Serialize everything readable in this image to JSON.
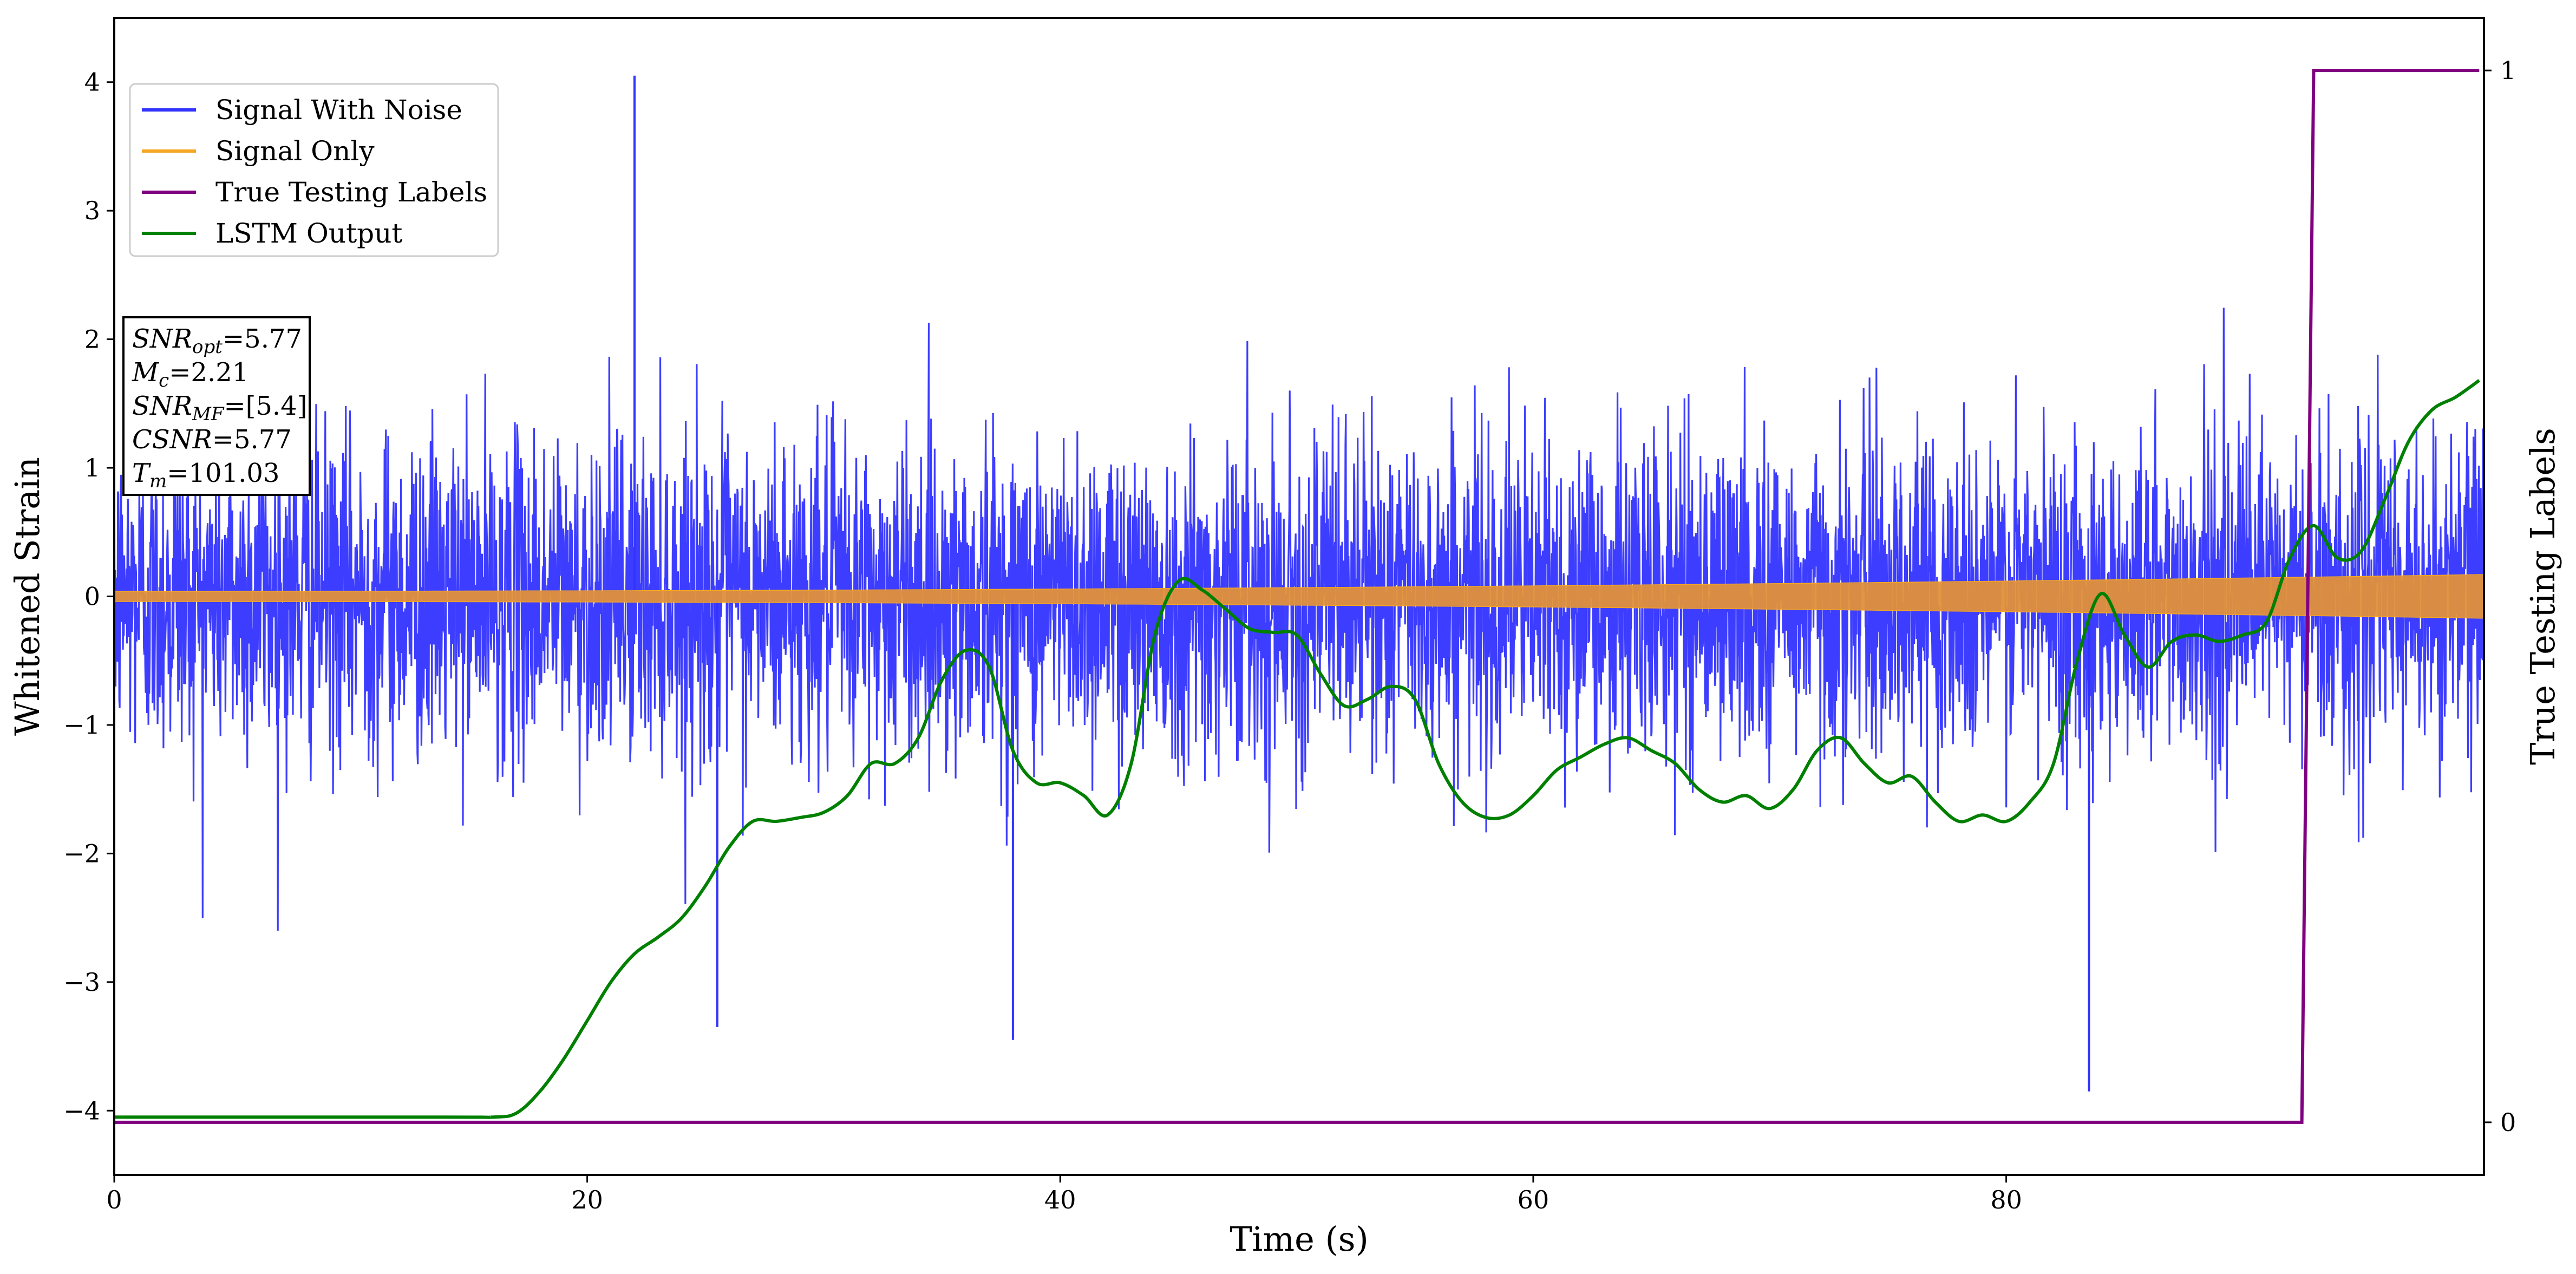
{
  "chart_data": {
    "type": "line",
    "xlabel": "Time (s)",
    "ylabel": "Whitened Strain",
    "y2label": "True Testing Labels",
    "xlim": [
      0,
      100.2
    ],
    "ylim": [
      -4.5,
      4.5
    ],
    "y2lim": [
      -0.05,
      1.05
    ],
    "x_ticks": [
      0,
      20,
      40,
      60,
      80
    ],
    "y_ticks": [
      -4,
      -3,
      -2,
      -1,
      0,
      1,
      2,
      3,
      4
    ],
    "y_tick_labels": [
      "−4",
      "−3",
      "−2",
      "−1",
      "0",
      "1",
      "2",
      "3",
      "4"
    ],
    "y2_ticks": [
      0,
      1
    ],
    "legend_position": "upper-left",
    "grid": false,
    "series": [
      {
        "name": "Signal With Noise",
        "axis": "left",
        "color": "#3333ff",
        "noise_envelope": {
          "core_amplitude": 1.3,
          "spike_max": 4.05,
          "spike_min": -3.85
        }
      },
      {
        "name": "Signal Only",
        "axis": "left",
        "color": "#f5a623",
        "amplitude_start": 0.04,
        "amplitude_end": 0.17
      },
      {
        "name": "True Testing Labels",
        "axis": "right",
        "color": "#800080",
        "x": [
          0,
          92.5,
          93.0,
          100
        ],
        "y": [
          0,
          0,
          1,
          1
        ]
      },
      {
        "name": "LSTM Output",
        "axis": "left",
        "color": "#008000",
        "x": [
          0,
          14,
          16,
          17,
          18,
          19,
          20,
          21,
          22,
          23,
          24,
          25,
          26,
          27,
          28,
          29,
          30,
          31,
          32,
          33,
          34,
          35,
          36,
          37,
          38,
          39,
          40,
          41,
          42,
          43,
          44,
          45,
          46,
          47,
          48,
          49,
          50,
          51,
          52,
          53,
          54,
          55,
          56,
          57,
          58,
          59,
          60,
          61,
          62,
          63,
          64,
          65,
          66,
          67,
          68,
          69,
          70,
          71,
          72,
          73,
          74,
          75,
          76,
          77,
          78,
          79,
          80,
          81,
          82,
          83,
          84,
          85,
          86,
          87,
          88,
          89,
          90,
          91,
          92,
          93,
          94,
          95,
          96,
          97,
          98,
          99,
          100
        ],
        "y": [
          -4.05,
          -4.05,
          -4.05,
          -4.02,
          -3.85,
          -3.6,
          -3.3,
          -3.0,
          -2.78,
          -2.65,
          -2.5,
          -2.25,
          -1.95,
          -1.75,
          -1.75,
          -1.72,
          -1.68,
          -1.55,
          -1.3,
          -1.3,
          -1.1,
          -0.65,
          -0.42,
          -0.55,
          -1.2,
          -1.45,
          -1.45,
          -1.55,
          -1.7,
          -1.3,
          -0.3,
          0.12,
          0.05,
          -0.1,
          -0.25,
          -0.28,
          -0.3,
          -0.6,
          -0.85,
          -0.8,
          -0.7,
          -0.8,
          -1.3,
          -1.6,
          -1.72,
          -1.7,
          -1.55,
          -1.35,
          -1.25,
          -1.15,
          -1.1,
          -1.2,
          -1.3,
          -1.5,
          -1.6,
          -1.55,
          -1.65,
          -1.5,
          -1.2,
          -1.1,
          -1.3,
          -1.45,
          -1.4,
          -1.6,
          -1.75,
          -1.7,
          -1.75,
          -1.6,
          -1.3,
          -0.5,
          0.02,
          -0.3,
          -0.55,
          -0.35,
          -0.3,
          -0.35,
          -0.3,
          -0.2,
          0.3,
          0.55,
          0.3,
          0.35,
          0.75,
          1.2,
          1.45,
          1.55,
          1.68
        ]
      }
    ],
    "annotation_lines": [
      {
        "id": "snr-opt",
        "var": "SNR",
        "sub": "opt",
        "value": "=5.77"
      },
      {
        "id": "mc",
        "var": "M",
        "sub": "c",
        "value": "=2.21"
      },
      {
        "id": "snr-mf",
        "var": "SNR",
        "sub": "MF",
        "value": "=[5.4]"
      },
      {
        "id": "csnr",
        "var": "CSNR",
        "sub": "",
        "value": "=5.77"
      },
      {
        "id": "tm",
        "var": "T",
        "sub": "m",
        "value": "=101.03"
      }
    ]
  }
}
